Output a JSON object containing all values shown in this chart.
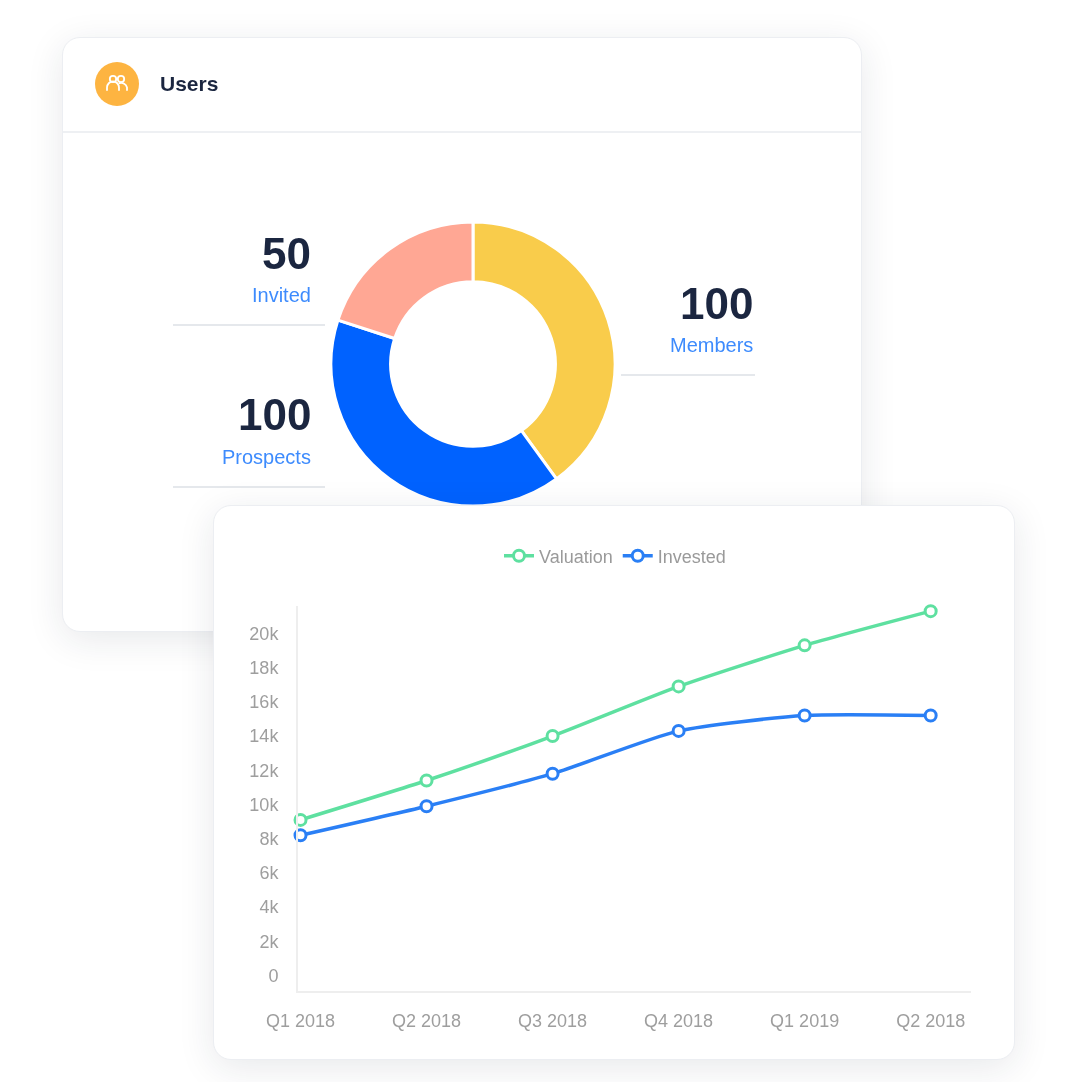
{
  "chart_data": [
    {
      "type": "donut",
      "title": "Users",
      "categories": [
        "Members",
        "Prospects",
        "Invited"
      ],
      "values": [
        100,
        100,
        50
      ],
      "colors": [
        "#f9cc4b",
        "#0062ff",
        "#ffa794"
      ],
      "data_labels": true
    },
    {
      "type": "line",
      "categories": [
        "Q1 2018",
        "Q2 2018",
        "Q3 2018",
        "Q4 2018",
        "Q1 2019",
        "Q2 2018"
      ],
      "series": [
        {
          "name": "Valuation",
          "color": "#5ee0a0",
          "values": [
            9100,
            11400,
            14000,
            16900,
            19300,
            21300
          ]
        },
        {
          "name": "Invested",
          "color": "#2a7ff5",
          "values": [
            8200,
            9900,
            11800,
            14300,
            15200,
            15200
          ]
        }
      ],
      "ylim": [
        -900,
        21600
      ],
      "yticks": [
        0,
        {
          "value": 2000,
          "label": "2k"
        },
        {
          "value": 4000,
          "label": "4k"
        },
        {
          "value": 6000,
          "label": "6k"
        },
        {
          "value": 8000,
          "label": "8k"
        },
        {
          "value": 10000,
          "label": "10k"
        },
        {
          "value": 12000,
          "label": "12k"
        },
        {
          "value": 14000,
          "label": "14k"
        },
        {
          "value": 16000,
          "label": "16k"
        },
        {
          "value": 18000,
          "label": "18k"
        },
        {
          "value": 20000,
          "label": "20k"
        }
      ],
      "legend": "top",
      "marker": "circle",
      "line_style": "solid"
    }
  ]
}
